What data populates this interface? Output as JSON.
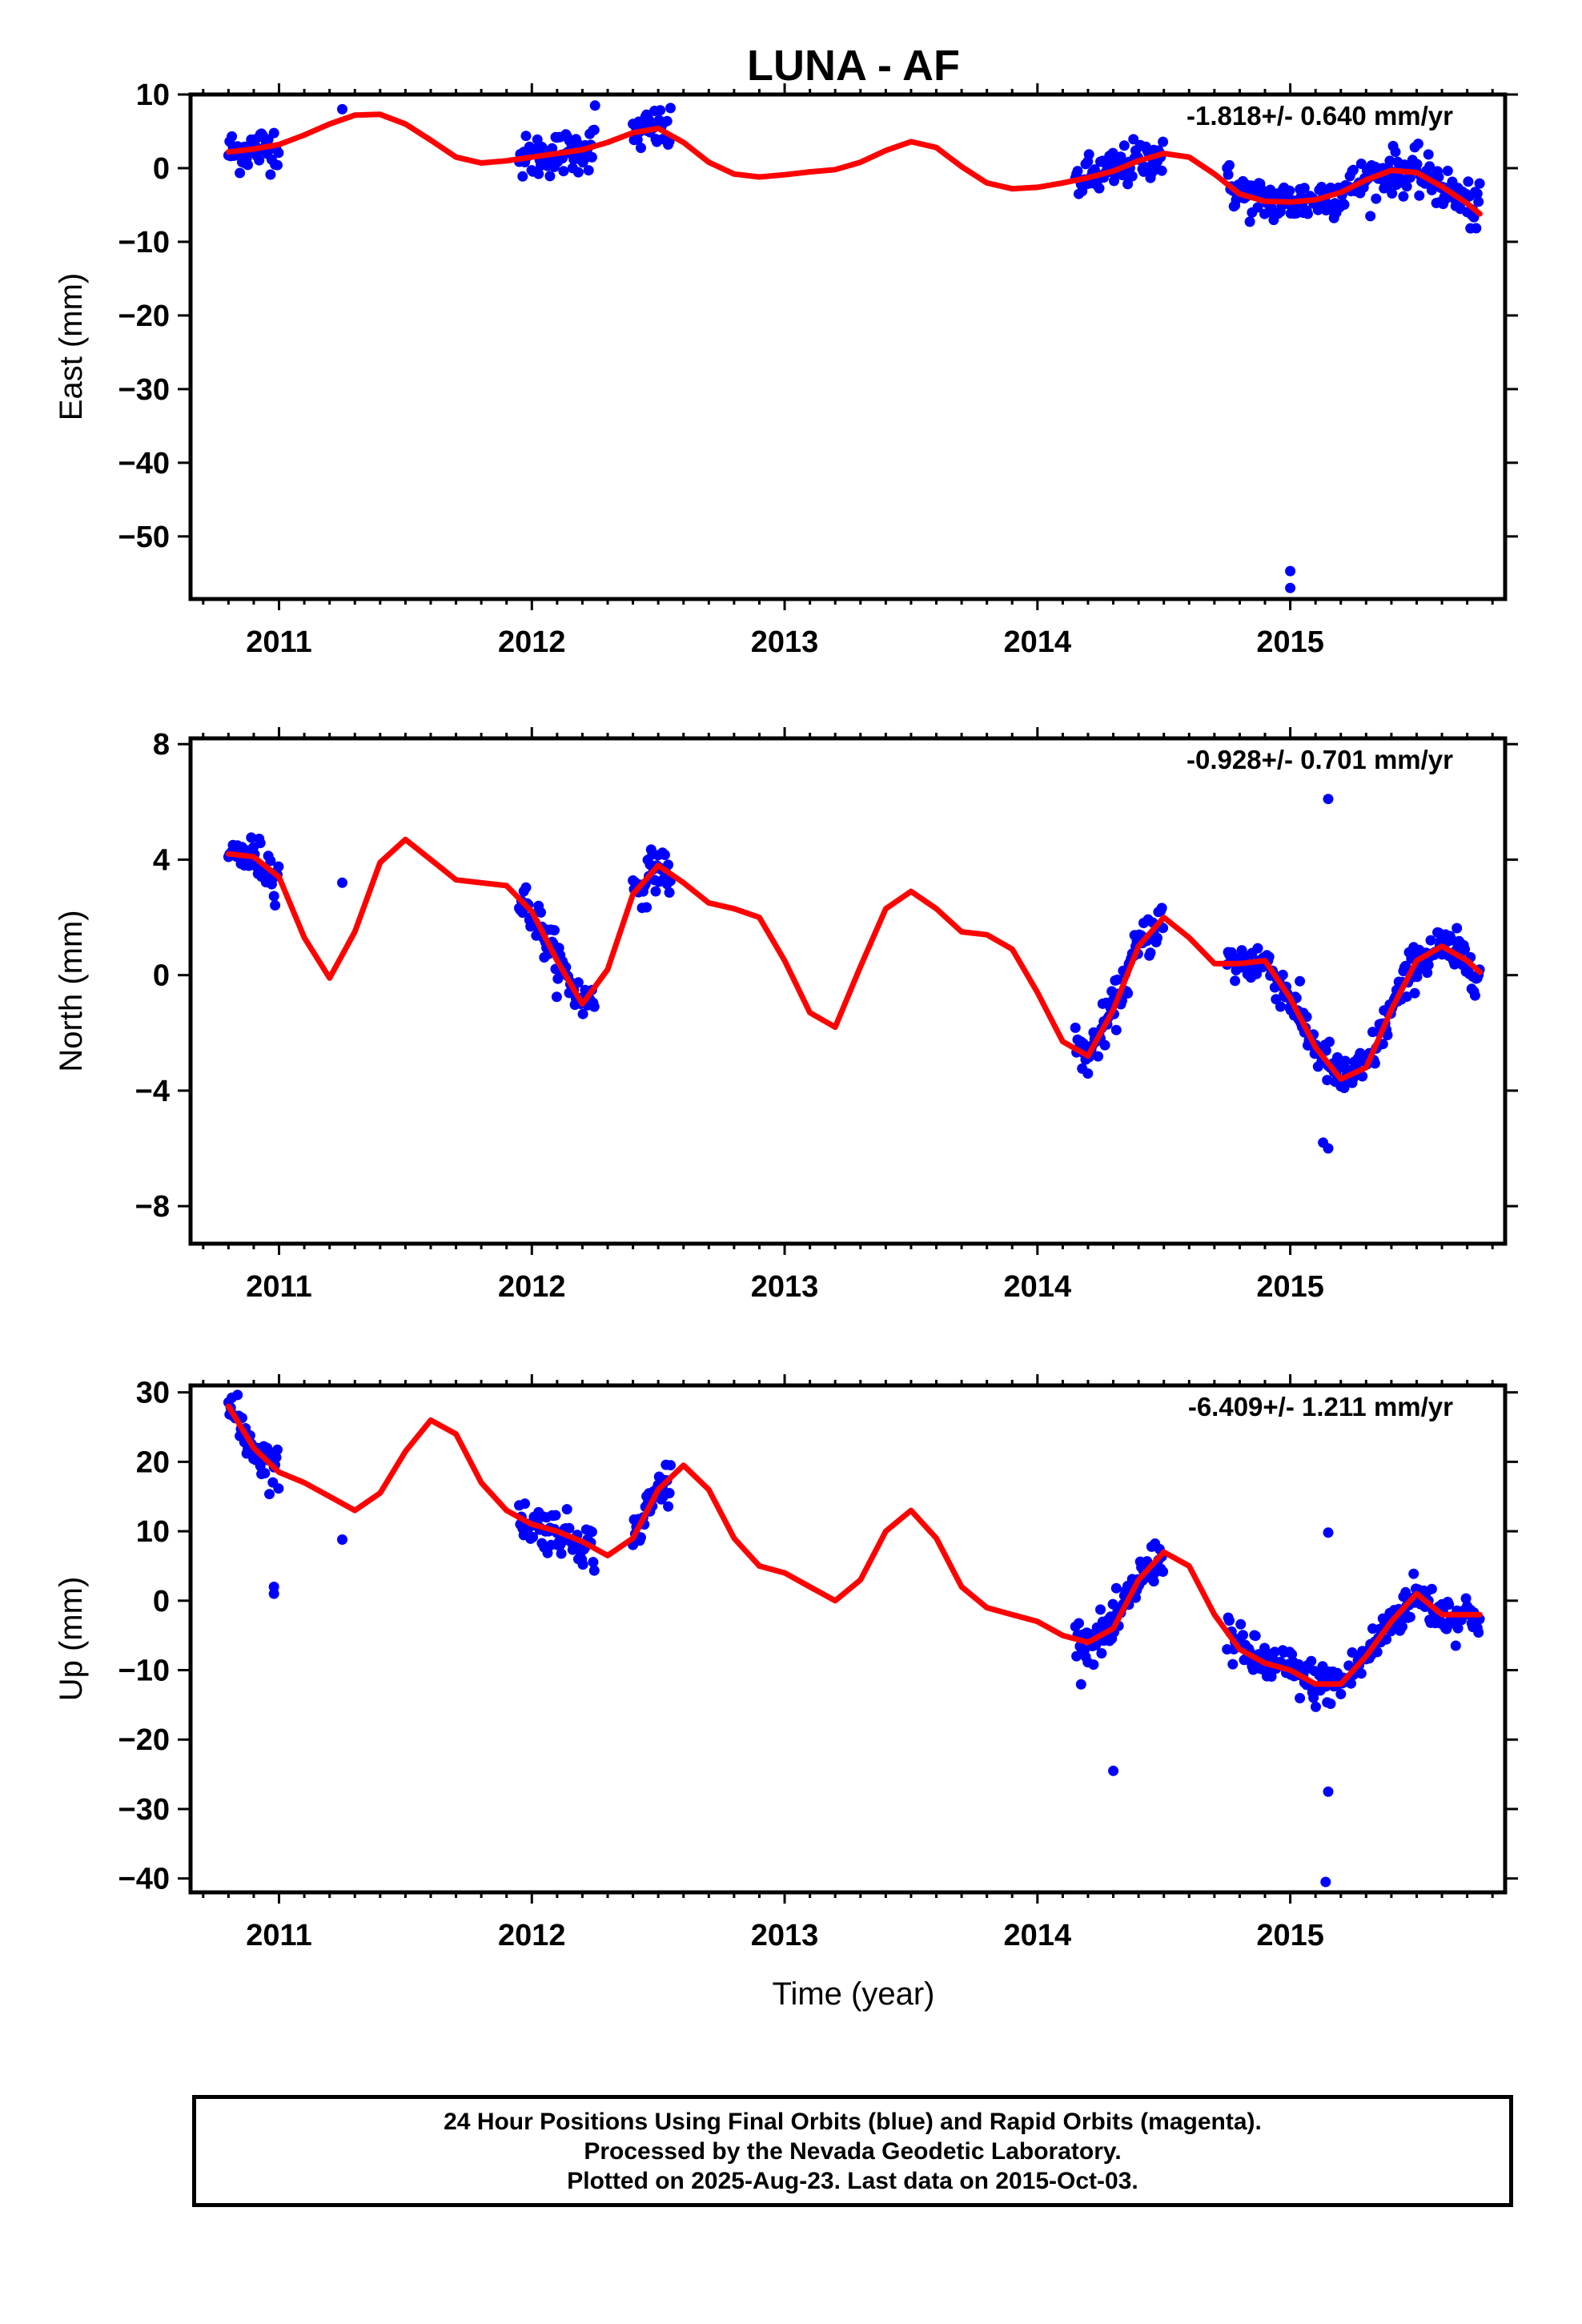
{
  "title": "LUNA - AF",
  "xlabel": "Time (year)",
  "footer": {
    "line1": "24 Hour Positions Using Final Orbits (blue) and Rapid Orbits (magenta).",
    "line2": "Processed by the Nevada Geodetic Laboratory.",
    "line3": "Plotted on 2025-Aug-23. Last data on 2015-Oct-03."
  },
  "colors": {
    "points": "#0000ff",
    "fit": "#ff0000",
    "frame": "#000000"
  },
  "chart_data": [
    {
      "type": "scatter",
      "panel": "east",
      "ylabel": "East (mm)",
      "rate": "-1.818+/- 0.640 mm/yr",
      "xlim": [
        2010.65,
        2015.85
      ],
      "ylim": [
        -58.5,
        10
      ],
      "xticks": [
        2011,
        2012,
        2013,
        2014,
        2015
      ],
      "yticks": [
        10,
        0,
        -10,
        -20,
        -30,
        -40,
        -50
      ],
      "data_ranges": [
        [
          2010.8,
          2011.0
        ],
        [
          2011.95,
          2012.25
        ],
        [
          2012.4,
          2012.55
        ],
        [
          2014.15,
          2014.5
        ],
        [
          2014.75,
          2015.75
        ]
      ],
      "outliers": [
        [
          2011.25,
          8.0
        ],
        [
          2012.25,
          8.5
        ],
        [
          2015.0,
          -54.7
        ],
        [
          2015.0,
          -57.0
        ]
      ],
      "fit": {
        "x": [
          2010.8,
          2010.9,
          2011.0,
          2011.1,
          2011.2,
          2011.3,
          2011.4,
          2011.5,
          2011.6,
          2011.7,
          2011.8,
          2011.9,
          2012.0,
          2012.1,
          2012.2,
          2012.3,
          2012.4,
          2012.5,
          2012.6,
          2012.7,
          2012.8,
          2012.9,
          2013.0,
          2013.1,
          2013.2,
          2013.3,
          2013.4,
          2013.5,
          2013.6,
          2013.7,
          2013.8,
          2013.9,
          2014.0,
          2014.1,
          2014.2,
          2014.3,
          2014.4,
          2014.5,
          2014.6,
          2014.7,
          2014.8,
          2014.9,
          2015.0,
          2015.1,
          2015.2,
          2015.3,
          2015.4,
          2015.5,
          2015.6,
          2015.7,
          2015.75
        ],
        "y": [
          2.2,
          2.6,
          3.2,
          4.5,
          6.0,
          7.2,
          7.3,
          6.0,
          3.8,
          1.5,
          0.7,
          1.0,
          1.5,
          2.0,
          2.5,
          3.5,
          4.8,
          5.4,
          3.5,
          0.8,
          -0.8,
          -1.2,
          -0.9,
          -0.5,
          -0.2,
          0.8,
          2.4,
          3.6,
          2.8,
          0.2,
          -2.0,
          -2.8,
          -2.6,
          -2.0,
          -1.3,
          -0.4,
          1.0,
          2.0,
          1.5,
          -0.8,
          -3.5,
          -4.5,
          -4.6,
          -4.3,
          -3.3,
          -1.6,
          -0.3,
          -0.6,
          -2.5,
          -4.8,
          -6.2
        ]
      }
    },
    {
      "type": "scatter",
      "panel": "north",
      "ylabel": "North (mm)",
      "rate": "-0.928+/- 0.701 mm/yr",
      "xlim": [
        2010.65,
        2015.85
      ],
      "ylim": [
        -9.3,
        8.2
      ],
      "xticks": [
        2011,
        2012,
        2013,
        2014,
        2015
      ],
      "yticks": [
        8,
        4,
        0,
        -4,
        -8
      ],
      "data_ranges": [
        [
          2010.8,
          2011.0
        ],
        [
          2011.95,
          2012.25
        ],
        [
          2012.4,
          2012.55
        ],
        [
          2014.15,
          2014.5
        ],
        [
          2014.75,
          2015.75
        ]
      ],
      "outliers": [
        [
          2011.25,
          3.2
        ],
        [
          2015.15,
          6.1
        ],
        [
          2015.13,
          -5.8
        ],
        [
          2015.15,
          -6.0
        ]
      ],
      "fit": {
        "x": [
          2010.8,
          2010.9,
          2011.0,
          2011.1,
          2011.2,
          2011.3,
          2011.4,
          2011.5,
          2011.6,
          2011.7,
          2011.8,
          2011.9,
          2012.0,
          2012.1,
          2012.2,
          2012.3,
          2012.4,
          2012.5,
          2012.6,
          2012.7,
          2012.8,
          2012.9,
          2013.0,
          2013.1,
          2013.2,
          2013.3,
          2013.4,
          2013.5,
          2013.6,
          2013.7,
          2013.8,
          2013.9,
          2014.0,
          2014.1,
          2014.2,
          2014.3,
          2014.4,
          2014.5,
          2014.6,
          2014.7,
          2014.8,
          2014.9,
          2015.0,
          2015.1,
          2015.2,
          2015.3,
          2015.4,
          2015.5,
          2015.6,
          2015.7,
          2015.75
        ],
        "y": [
          4.2,
          4.1,
          3.4,
          1.3,
          -0.1,
          1.5,
          3.9,
          4.7,
          4.0,
          3.3,
          3.2,
          3.1,
          2.2,
          0.5,
          -1.0,
          0.2,
          2.8,
          3.8,
          3.2,
          2.5,
          2.3,
          2.0,
          0.5,
          -1.3,
          -1.8,
          0.3,
          2.3,
          2.9,
          2.3,
          1.5,
          1.4,
          0.9,
          -0.6,
          -2.3,
          -2.8,
          -1.2,
          1.0,
          2.0,
          1.3,
          0.4,
          0.4,
          0.5,
          -0.8,
          -2.5,
          -3.6,
          -3.2,
          -1.2,
          0.5,
          1.0,
          0.5,
          0.1
        ]
      }
    },
    {
      "type": "scatter",
      "panel": "up",
      "ylabel": "Up (mm)",
      "rate": "-6.409+/- 1.211 mm/yr",
      "xlim": [
        2010.65,
        2015.85
      ],
      "ylim": [
        -42,
        31
      ],
      "xticks": [
        2011,
        2012,
        2013,
        2014,
        2015
      ],
      "yticks": [
        30,
        20,
        10,
        0,
        -10,
        -20,
        -30,
        -40
      ],
      "data_ranges": [
        [
          2010.8,
          2011.0
        ],
        [
          2011.95,
          2012.25
        ],
        [
          2012.4,
          2012.55
        ],
        [
          2014.15,
          2014.5
        ],
        [
          2014.75,
          2015.75
        ]
      ],
      "outliers": [
        [
          2011.25,
          8.8
        ],
        [
          2010.98,
          2.0
        ],
        [
          2010.98,
          1.0
        ],
        [
          2014.3,
          -24.5
        ],
        [
          2015.15,
          -27.5
        ],
        [
          2015.14,
          -40.5
        ],
        [
          2015.15,
          9.8
        ]
      ],
      "fit": {
        "x": [
          2010.8,
          2010.9,
          2011.0,
          2011.1,
          2011.2,
          2011.3,
          2011.4,
          2011.5,
          2011.6,
          2011.7,
          2011.8,
          2011.9,
          2012.0,
          2012.1,
          2012.2,
          2012.3,
          2012.4,
          2012.5,
          2012.6,
          2012.7,
          2012.8,
          2012.9,
          2013.0,
          2013.1,
          2013.2,
          2013.3,
          2013.4,
          2013.5,
          2013.6,
          2013.7,
          2013.8,
          2013.9,
          2014.0,
          2014.1,
          2014.2,
          2014.3,
          2014.4,
          2014.5,
          2014.6,
          2014.7,
          2014.8,
          2014.9,
          2015.0,
          2015.1,
          2015.2,
          2015.3,
          2015.4,
          2015.5,
          2015.6,
          2015.7,
          2015.75
        ],
        "y": [
          28.0,
          22.0,
          18.5,
          17.0,
          15.0,
          13.0,
          15.5,
          21.5,
          26.0,
          24.0,
          17.0,
          13.0,
          11.0,
          10.0,
          8.5,
          6.5,
          9.0,
          16.0,
          19.5,
          16.0,
          9.0,
          5.0,
          4.0,
          2.0,
          0.0,
          3.0,
          10.0,
          13.0,
          9.0,
          2.0,
          -1.0,
          -2.0,
          -3.0,
          -5.0,
          -6.0,
          -4.0,
          3.0,
          7.0,
          5.0,
          -2.0,
          -7.0,
          -9.0,
          -10.0,
          -12.0,
          -12.0,
          -8.0,
          -3.0,
          1.0,
          -2.0,
          -2.0,
          -2.0
        ]
      }
    }
  ]
}
